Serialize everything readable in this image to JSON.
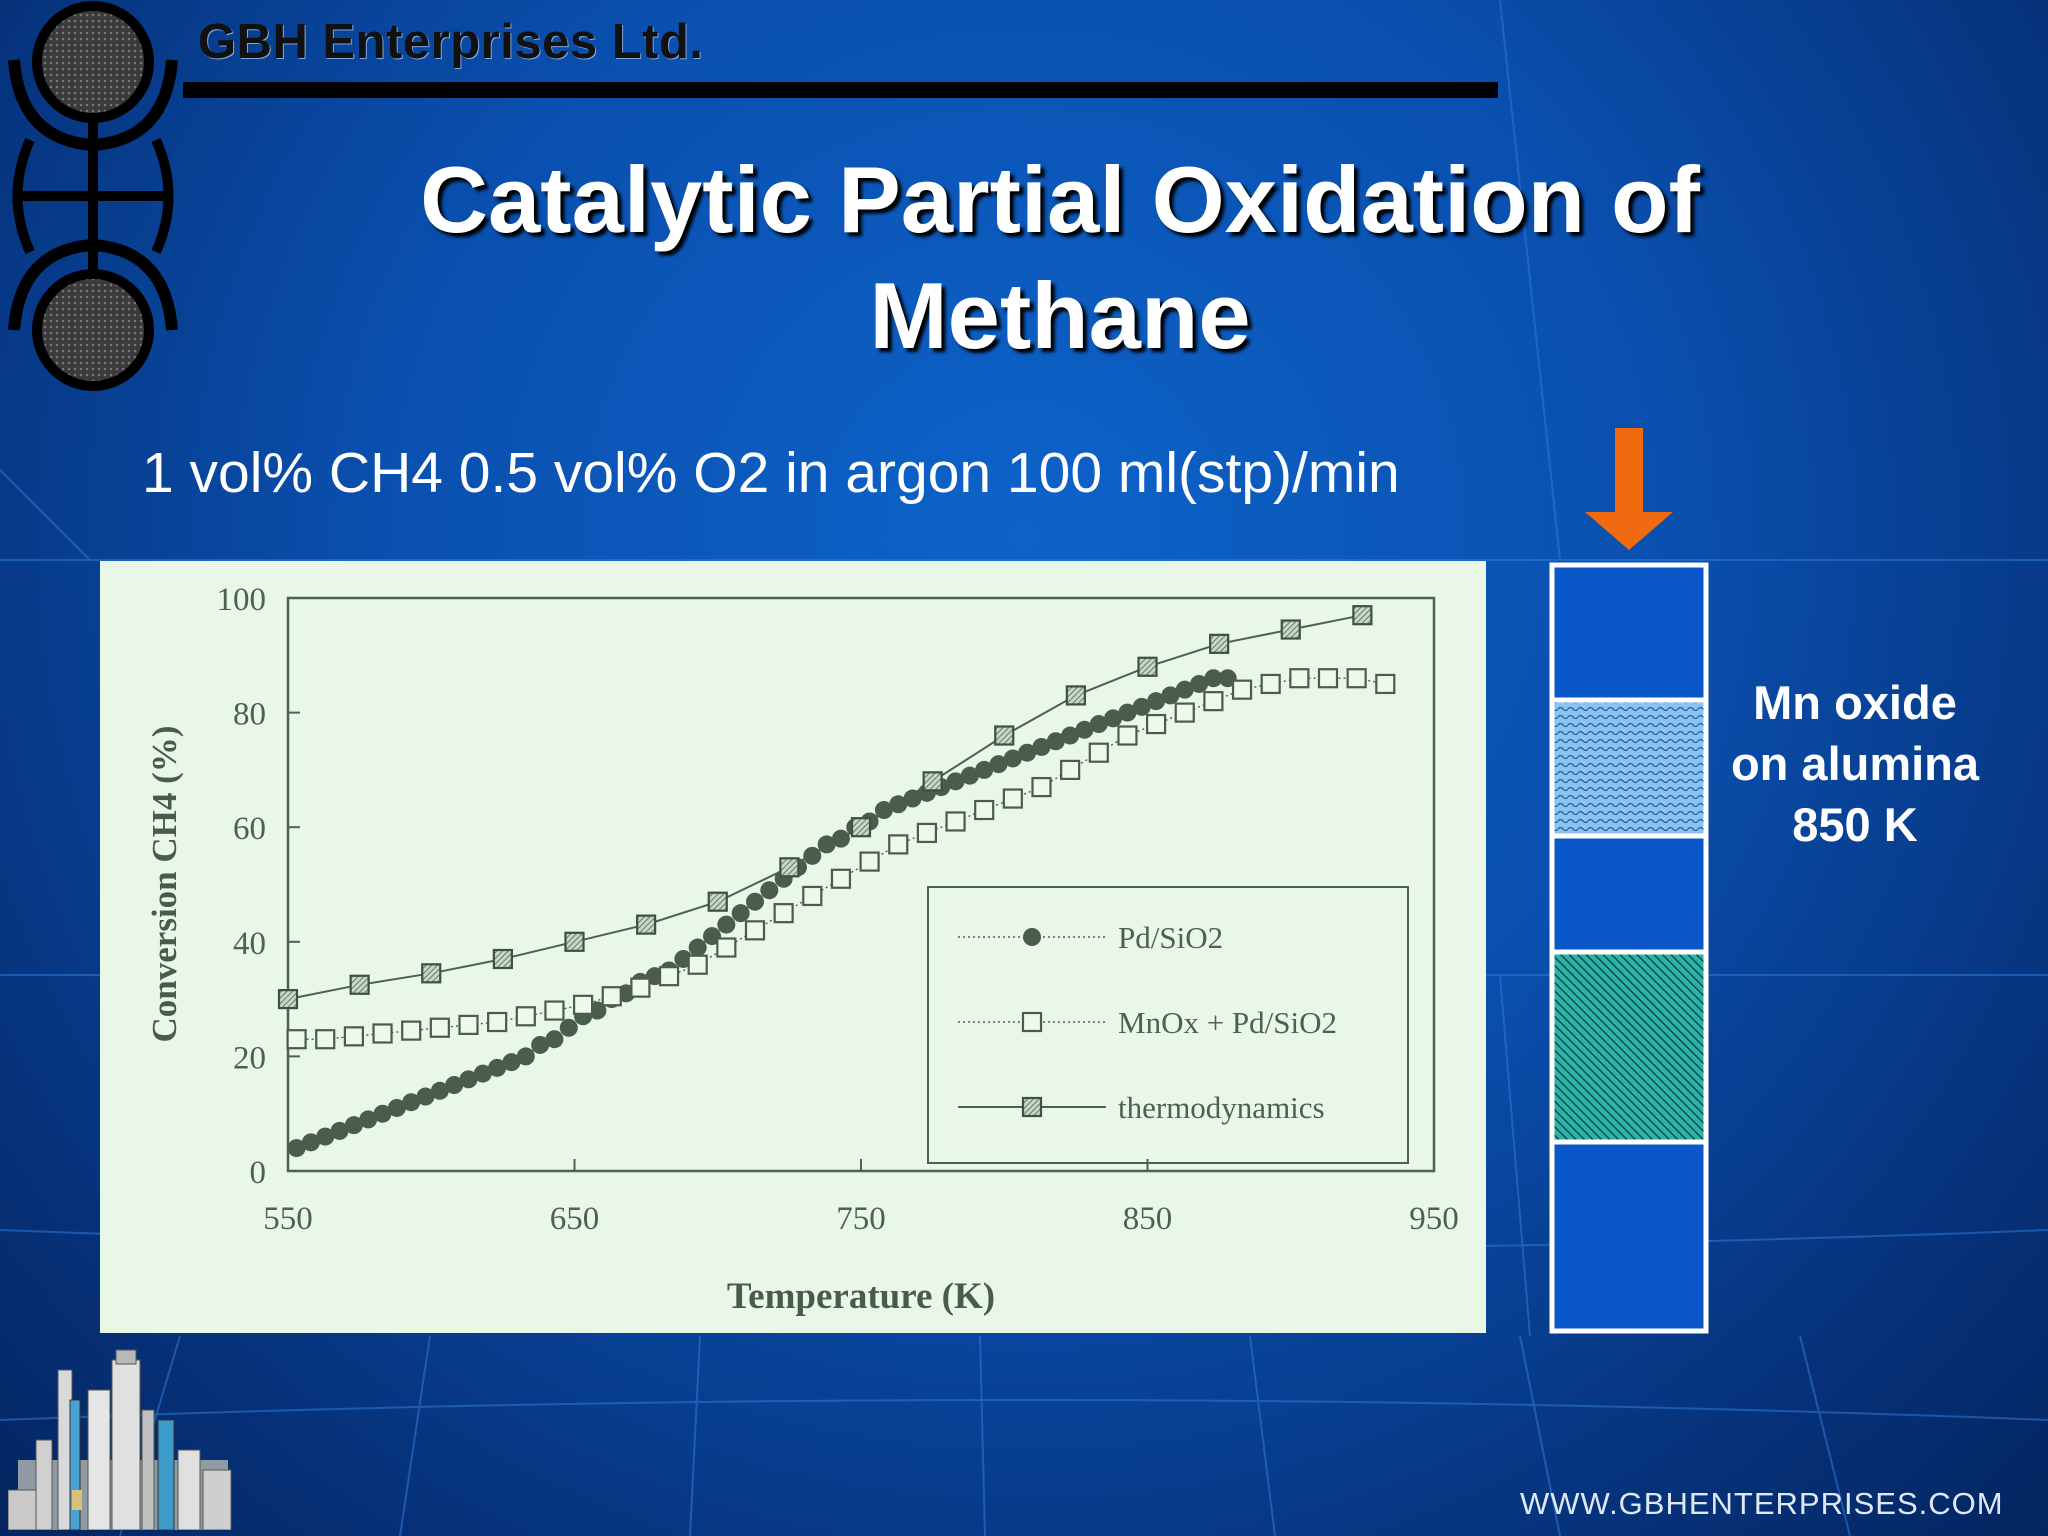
{
  "header": {
    "company": "GBH Enterprises Ltd."
  },
  "slide": {
    "title_line1": "Catalytic Partial Oxidation of",
    "title_line2": "Methane",
    "condition": "1 vol% CH4 0.5 vol% O2 in argon 100 ml(stp)/min"
  },
  "reactor": {
    "label_line1": "Mn oxide",
    "label_line2": "on alumina",
    "label_line3": "850 K",
    "arrow_color": "#f26a10"
  },
  "footer": {
    "website": "WWW.GBHENTERPRISES.COM"
  },
  "chart_data": {
    "type": "scatter",
    "xlabel": "Temperature (K)",
    "ylabel": "Conversion CH4 (%)",
    "xlim": [
      550,
      950
    ],
    "ylim": [
      0,
      100
    ],
    "xticks": [
      550,
      650,
      750,
      850,
      950
    ],
    "yticks": [
      0,
      20,
      40,
      60,
      80,
      100
    ],
    "legend_position": "lower-right",
    "series": [
      {
        "name": "Pd/SiO2",
        "marker": "filled-circle",
        "line": "dotted",
        "points": [
          [
            553,
            4
          ],
          [
            558,
            5
          ],
          [
            563,
            6
          ],
          [
            568,
            7
          ],
          [
            573,
            8
          ],
          [
            578,
            9
          ],
          [
            583,
            10
          ],
          [
            588,
            11
          ],
          [
            593,
            12
          ],
          [
            598,
            13
          ],
          [
            603,
            14
          ],
          [
            608,
            15
          ],
          [
            613,
            16
          ],
          [
            618,
            17
          ],
          [
            623,
            18
          ],
          [
            628,
            19
          ],
          [
            633,
            20
          ],
          [
            638,
            22
          ],
          [
            643,
            23
          ],
          [
            648,
            25
          ],
          [
            653,
            27
          ],
          [
            658,
            28
          ],
          [
            663,
            30
          ],
          [
            668,
            31
          ],
          [
            673,
            33
          ],
          [
            678,
            34
          ],
          [
            683,
            35
          ],
          [
            688,
            37
          ],
          [
            693,
            39
          ],
          [
            698,
            41
          ],
          [
            703,
            43
          ],
          [
            708,
            45
          ],
          [
            713,
            47
          ],
          [
            718,
            49
          ],
          [
            723,
            51
          ],
          [
            728,
            53
          ],
          [
            733,
            55
          ],
          [
            738,
            57
          ],
          [
            743,
            58
          ],
          [
            748,
            60
          ],
          [
            753,
            61
          ],
          [
            758,
            63
          ],
          [
            763,
            64
          ],
          [
            768,
            65
          ],
          [
            773,
            66
          ],
          [
            778,
            67
          ],
          [
            783,
            68
          ],
          [
            788,
            69
          ],
          [
            793,
            70
          ],
          [
            798,
            71
          ],
          [
            803,
            72
          ],
          [
            808,
            73
          ],
          [
            813,
            74
          ],
          [
            818,
            75
          ],
          [
            823,
            76
          ],
          [
            828,
            77
          ],
          [
            833,
            78
          ],
          [
            838,
            79
          ],
          [
            843,
            80
          ],
          [
            848,
            81
          ],
          [
            853,
            82
          ],
          [
            858,
            83
          ],
          [
            863,
            84
          ],
          [
            868,
            85
          ],
          [
            873,
            86
          ],
          [
            878,
            86
          ]
        ]
      },
      {
        "name": "MnOx + Pd/SiO2",
        "marker": "open-square",
        "line": "dotted",
        "points": [
          [
            553,
            23
          ],
          [
            563,
            23
          ],
          [
            573,
            23.5
          ],
          [
            583,
            24
          ],
          [
            593,
            24.5
          ],
          [
            603,
            25
          ],
          [
            613,
            25.5
          ],
          [
            623,
            26
          ],
          [
            633,
            27
          ],
          [
            643,
            28
          ],
          [
            653,
            29
          ],
          [
            663,
            30.5
          ],
          [
            673,
            32
          ],
          [
            683,
            34
          ],
          [
            693,
            36
          ],
          [
            703,
            39
          ],
          [
            713,
            42
          ],
          [
            723,
            45
          ],
          [
            733,
            48
          ],
          [
            743,
            51
          ],
          [
            753,
            54
          ],
          [
            763,
            57
          ],
          [
            773,
            59
          ],
          [
            783,
            61
          ],
          [
            793,
            63
          ],
          [
            803,
            65
          ],
          [
            813,
            67
          ],
          [
            823,
            70
          ],
          [
            833,
            73
          ],
          [
            843,
            76
          ],
          [
            853,
            78
          ],
          [
            863,
            80
          ],
          [
            873,
            82
          ],
          [
            883,
            84
          ],
          [
            893,
            85
          ],
          [
            903,
            86
          ],
          [
            913,
            86
          ],
          [
            923,
            86
          ],
          [
            933,
            85
          ]
        ]
      },
      {
        "name": "thermodynamics",
        "marker": "hatched-square",
        "line": "solid",
        "points": [
          [
            550,
            30
          ],
          [
            575,
            32.5
          ],
          [
            600,
            34.5
          ],
          [
            625,
            37
          ],
          [
            650,
            40
          ],
          [
            675,
            43
          ],
          [
            700,
            47
          ],
          [
            725,
            53
          ],
          [
            750,
            60
          ],
          [
            775,
            68
          ],
          [
            800,
            76
          ],
          [
            825,
            83
          ],
          [
            850,
            88
          ],
          [
            875,
            92
          ],
          [
            900,
            94.5
          ],
          [
            925,
            97
          ]
        ]
      }
    ]
  }
}
